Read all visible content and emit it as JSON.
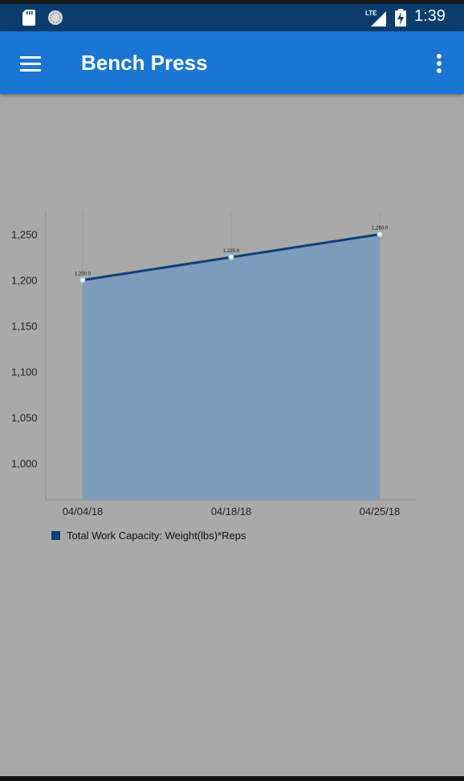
{
  "status_bar": {
    "network": "LTE",
    "time": "1:39",
    "icons": [
      "sd-card-icon",
      "sync-icon",
      "signal-icon",
      "battery-charging-icon"
    ]
  },
  "app_bar": {
    "title": "Bench Press",
    "menu_icon": "hamburger-menu-icon",
    "overflow_icon": "more-vertical-icon",
    "color": "#1976d2"
  },
  "chart_data": {
    "type": "area",
    "categories": [
      "04/04/18",
      "04/18/18",
      "04/25/18"
    ],
    "series": [
      {
        "name": "Total Work Capacity: Weight(lbs)*Reps",
        "values": [
          1200,
          1225,
          1250
        ],
        "value_labels": [
          "1,200.0",
          "1,225.0",
          "1,250.0"
        ],
        "line_color": "#0f3e7a",
        "fill_color": "#7a9bbd"
      }
    ],
    "y_ticks": [
      1000,
      1050,
      1100,
      1150,
      1200,
      1250
    ],
    "y_tick_labels": [
      "1,000",
      "1,050",
      "1,100",
      "1,150",
      "1,200",
      "1,250"
    ],
    "ylim": [
      960,
      1276
    ],
    "grid": true,
    "legend_position": "bottom-left"
  }
}
